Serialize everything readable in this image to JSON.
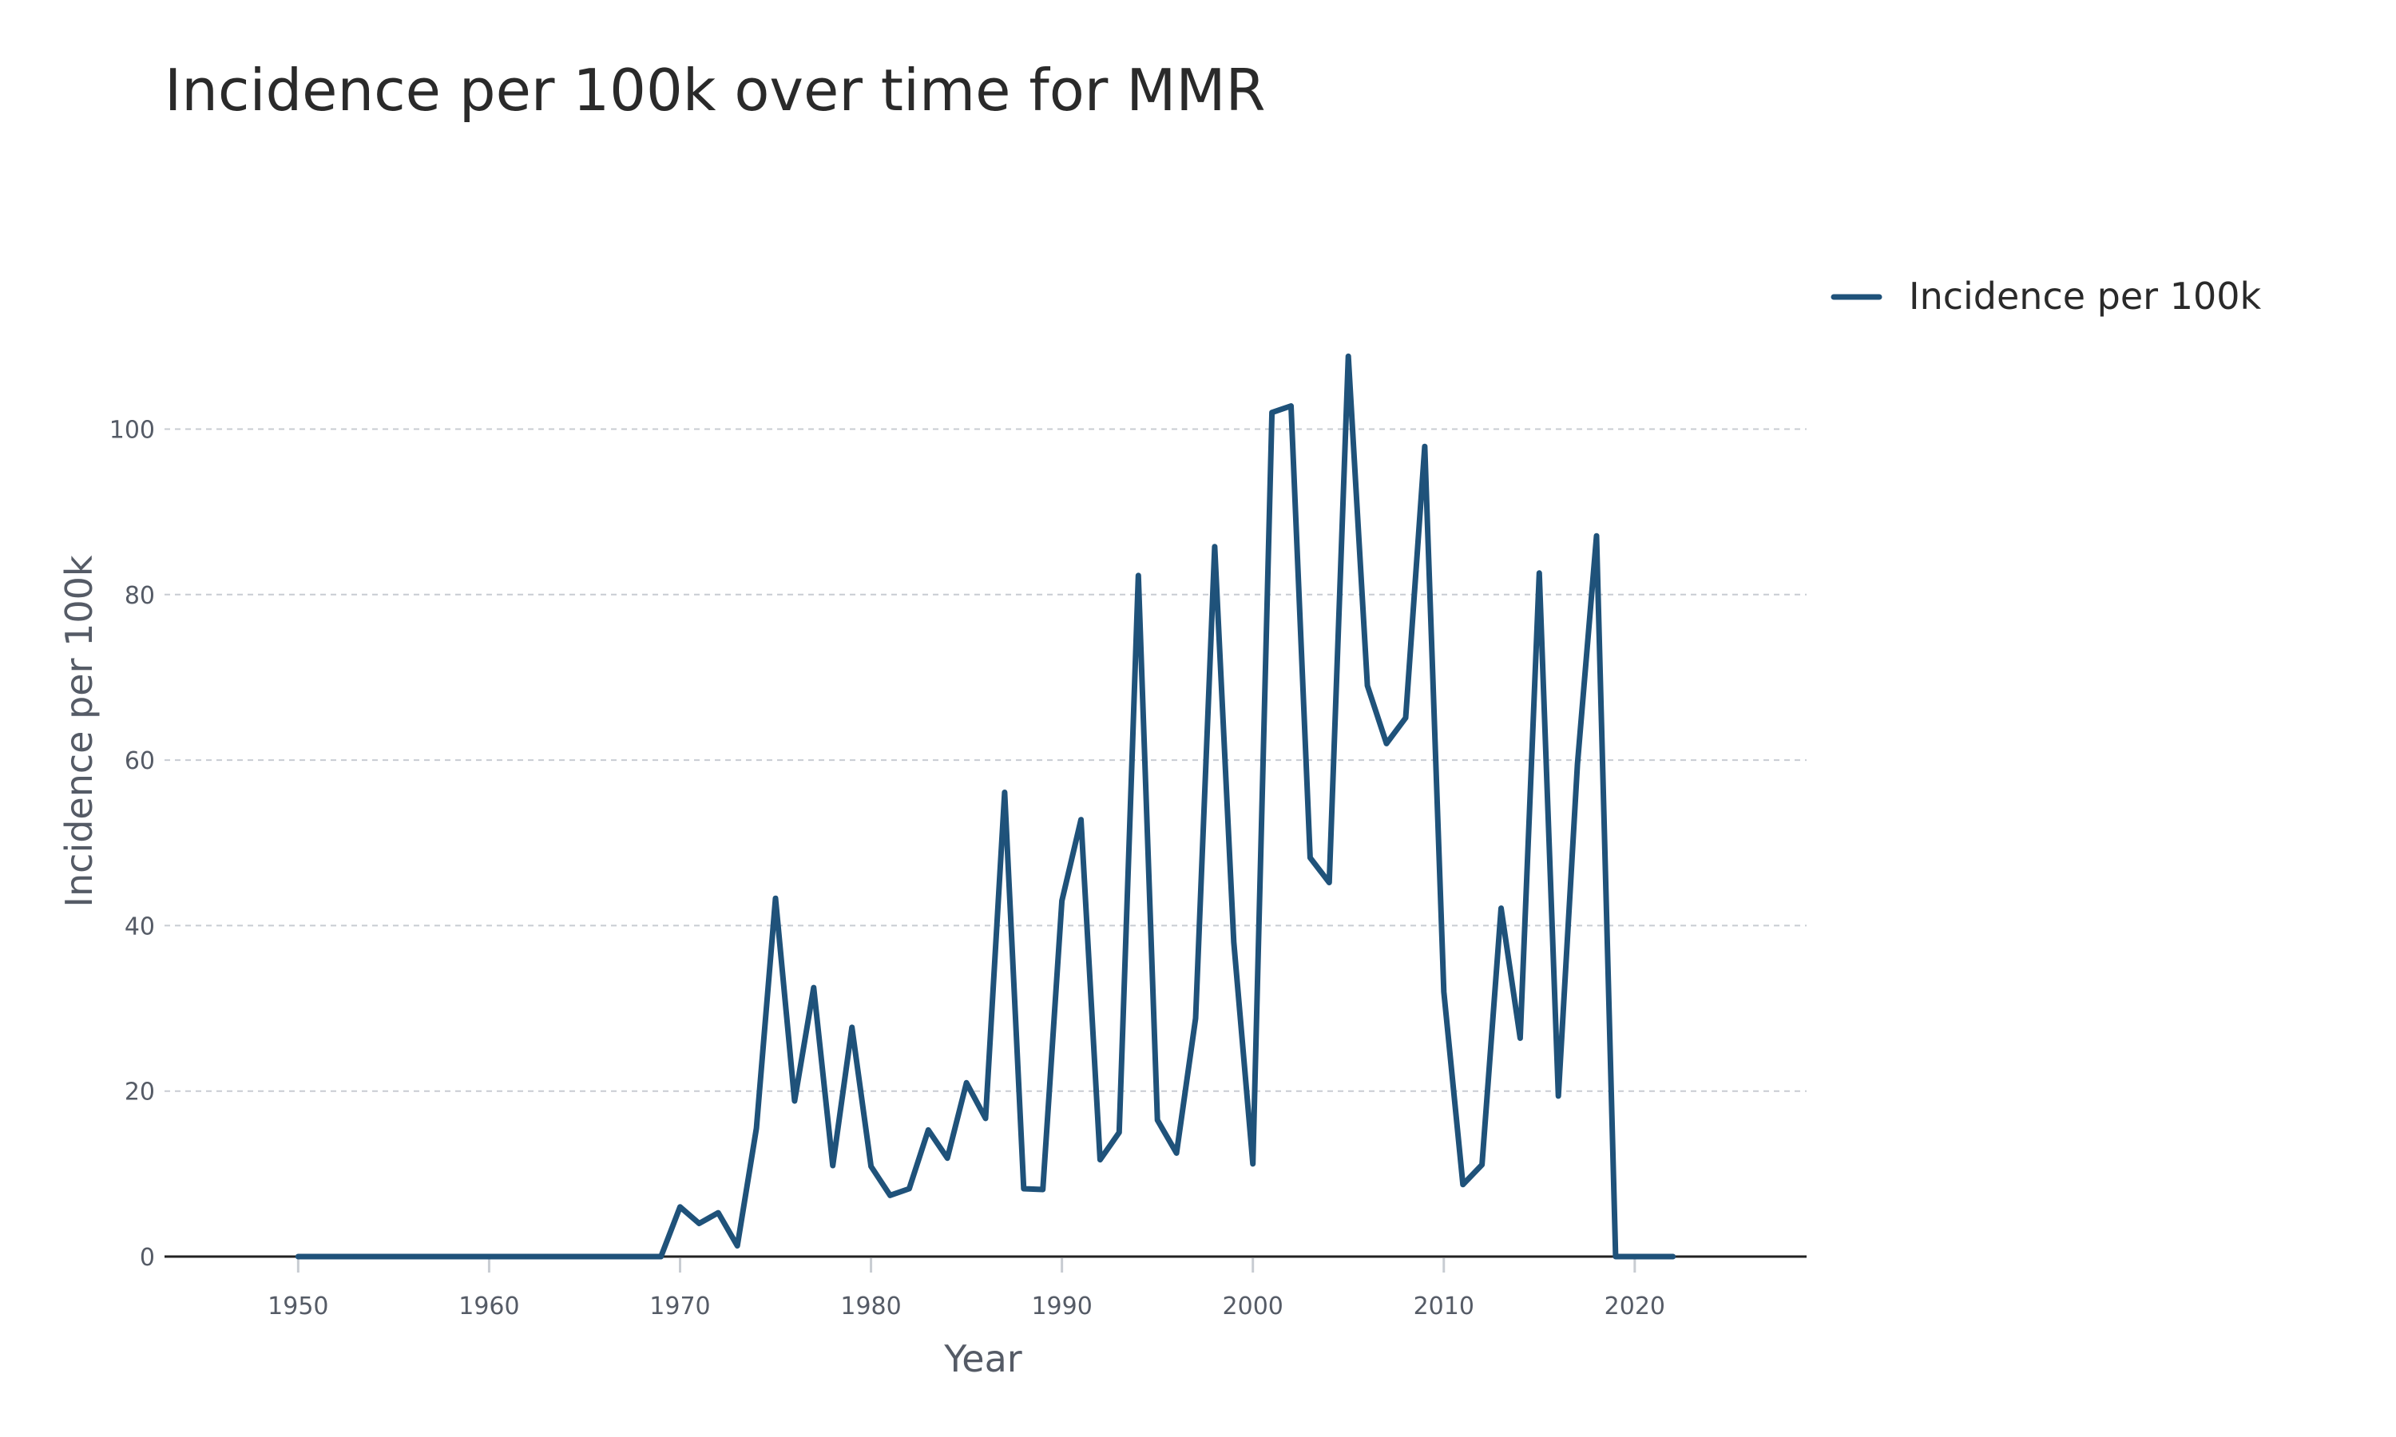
{
  "chart_data": {
    "type": "line",
    "title": "Incidence per 100k over time for MMR",
    "xlabel": "Year",
    "ylabel": "Incidence per 100k",
    "xlim": [
      1943,
      2029
    ],
    "ylim": [
      0,
      115
    ],
    "x_ticks": [
      1950,
      1960,
      1970,
      1980,
      1990,
      2000,
      2010,
      2020
    ],
    "y_ticks": [
      0,
      20,
      40,
      60,
      80,
      100
    ],
    "grid": "horizontal",
    "legend_position": "top-right",
    "colors": {
      "series": "#1f527a"
    },
    "series": [
      {
        "name": "Incidence per 100k",
        "x": [
          1950,
          1951,
          1952,
          1953,
          1954,
          1955,
          1956,
          1957,
          1958,
          1959,
          1960,
          1961,
          1962,
          1963,
          1964,
          1965,
          1966,
          1967,
          1968,
          1969,
          1970,
          1971,
          1972,
          1973,
          1974,
          1975,
          1976,
          1977,
          1978,
          1979,
          1980,
          1981,
          1982,
          1983,
          1984,
          1985,
          1986,
          1987,
          1988,
          1989,
          1990,
          1991,
          1992,
          1993,
          1994,
          1995,
          1996,
          1997,
          1998,
          1999,
          2000,
          2001,
          2002,
          2003,
          2004,
          2005,
          2006,
          2007,
          2008,
          2009,
          2010,
          2011,
          2012,
          2013,
          2014,
          2015,
          2016,
          2017,
          2018,
          2019,
          2020,
          2021,
          2022
        ],
        "y": [
          0,
          0,
          0,
          0,
          0,
          0,
          0,
          0,
          0,
          0,
          0,
          0,
          0,
          0,
          0,
          0,
          0,
          0,
          0,
          0,
          6,
          4,
          5.3,
          1.3,
          15.5,
          43.3,
          18.8,
          32.5,
          11,
          27.7,
          10.9,
          7.4,
          8.2,
          15.3,
          11.9,
          21,
          16.7,
          56.1,
          8.2,
          8.1,
          43,
          52.8,
          11.7,
          15,
          82.3,
          16.5,
          12.5,
          28.8,
          85.8,
          38,
          11.2,
          102,
          102.8,
          48.2,
          45.2,
          108.8,
          69,
          62,
          65.1,
          97.9,
          32,
          8.7,
          11.1,
          42.1,
          26.4,
          82.6,
          19.4,
          59.5,
          87.1,
          0,
          0,
          0,
          0
        ]
      }
    ]
  }
}
